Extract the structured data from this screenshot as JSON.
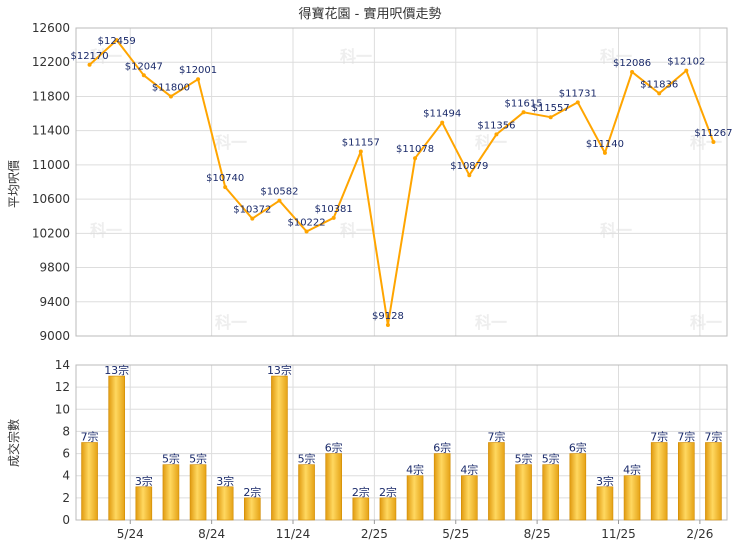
{
  "chart_data": [
    {
      "type": "line",
      "title": "得寶花園 - 實用呎價走勢",
      "ylabel": "平均呎價",
      "ylim": [
        9000,
        12600
      ],
      "yticks": [
        "9000",
        "9400",
        "9800",
        "10200",
        "10600",
        "11000",
        "11400",
        "11800",
        "12200",
        "12600"
      ],
      "grid": true,
      "series_color": "#ffa500",
      "values": [
        12170,
        12459,
        12047,
        11800,
        12001,
        10740,
        10372,
        10582,
        10222,
        10381,
        11157,
        9128,
        11078,
        11494,
        10879,
        11356,
        11615,
        11557,
        11731,
        11140,
        12086,
        11836,
        12102,
        11267
      ],
      "data_labels": [
        "$12170",
        "$12459",
        "$12047",
        "$11800",
        "$12001",
        "$10740",
        "$10372",
        "$10582",
        "$10222",
        "$10381",
        "$11157",
        "$9128",
        "$11078",
        "$11494",
        "$10879",
        "$11356",
        "$11615",
        "$11557",
        "$11731",
        "$11140",
        "$12086",
        "$11836",
        "$12102",
        "$11267"
      ]
    },
    {
      "type": "bar",
      "ylabel": "成交宗數",
      "ylim": [
        0,
        14
      ],
      "yticks": [
        "0",
        "2",
        "4",
        "6",
        "8",
        "10",
        "12",
        "14"
      ],
      "grid": true,
      "bar_color": "#f0b020",
      "xtick_labels": [
        {
          "after_index": 1,
          "label": "5/24"
        },
        {
          "after_index": 4,
          "label": "8/24"
        },
        {
          "after_index": 7,
          "label": "11/24"
        },
        {
          "after_index": 10,
          "label": "2/25"
        },
        {
          "after_index": 13,
          "label": "5/25"
        },
        {
          "after_index": 16,
          "label": "8/25"
        },
        {
          "after_index": 19,
          "label": "11/25"
        },
        {
          "after_index": 22,
          "label": "2/26"
        }
      ],
      "values": [
        7,
        13,
        3,
        5,
        5,
        3,
        2,
        13,
        5,
        6,
        2,
        2,
        4,
        6,
        4,
        7,
        5,
        5,
        6,
        3,
        4,
        7,
        7,
        7
      ],
      "data_labels": [
        "7宗",
        "13宗",
        "3宗",
        "5宗",
        "5宗",
        "3宗",
        "2宗",
        "13宗",
        "5宗",
        "6宗",
        "2宗",
        "2宗",
        "4宗",
        "6宗",
        "4宗",
        "7宗",
        "5宗",
        "5宗",
        "6宗",
        "3宗",
        "4宗",
        "7宗",
        "7宗",
        "7宗"
      ]
    }
  ],
  "watermark": "科一"
}
